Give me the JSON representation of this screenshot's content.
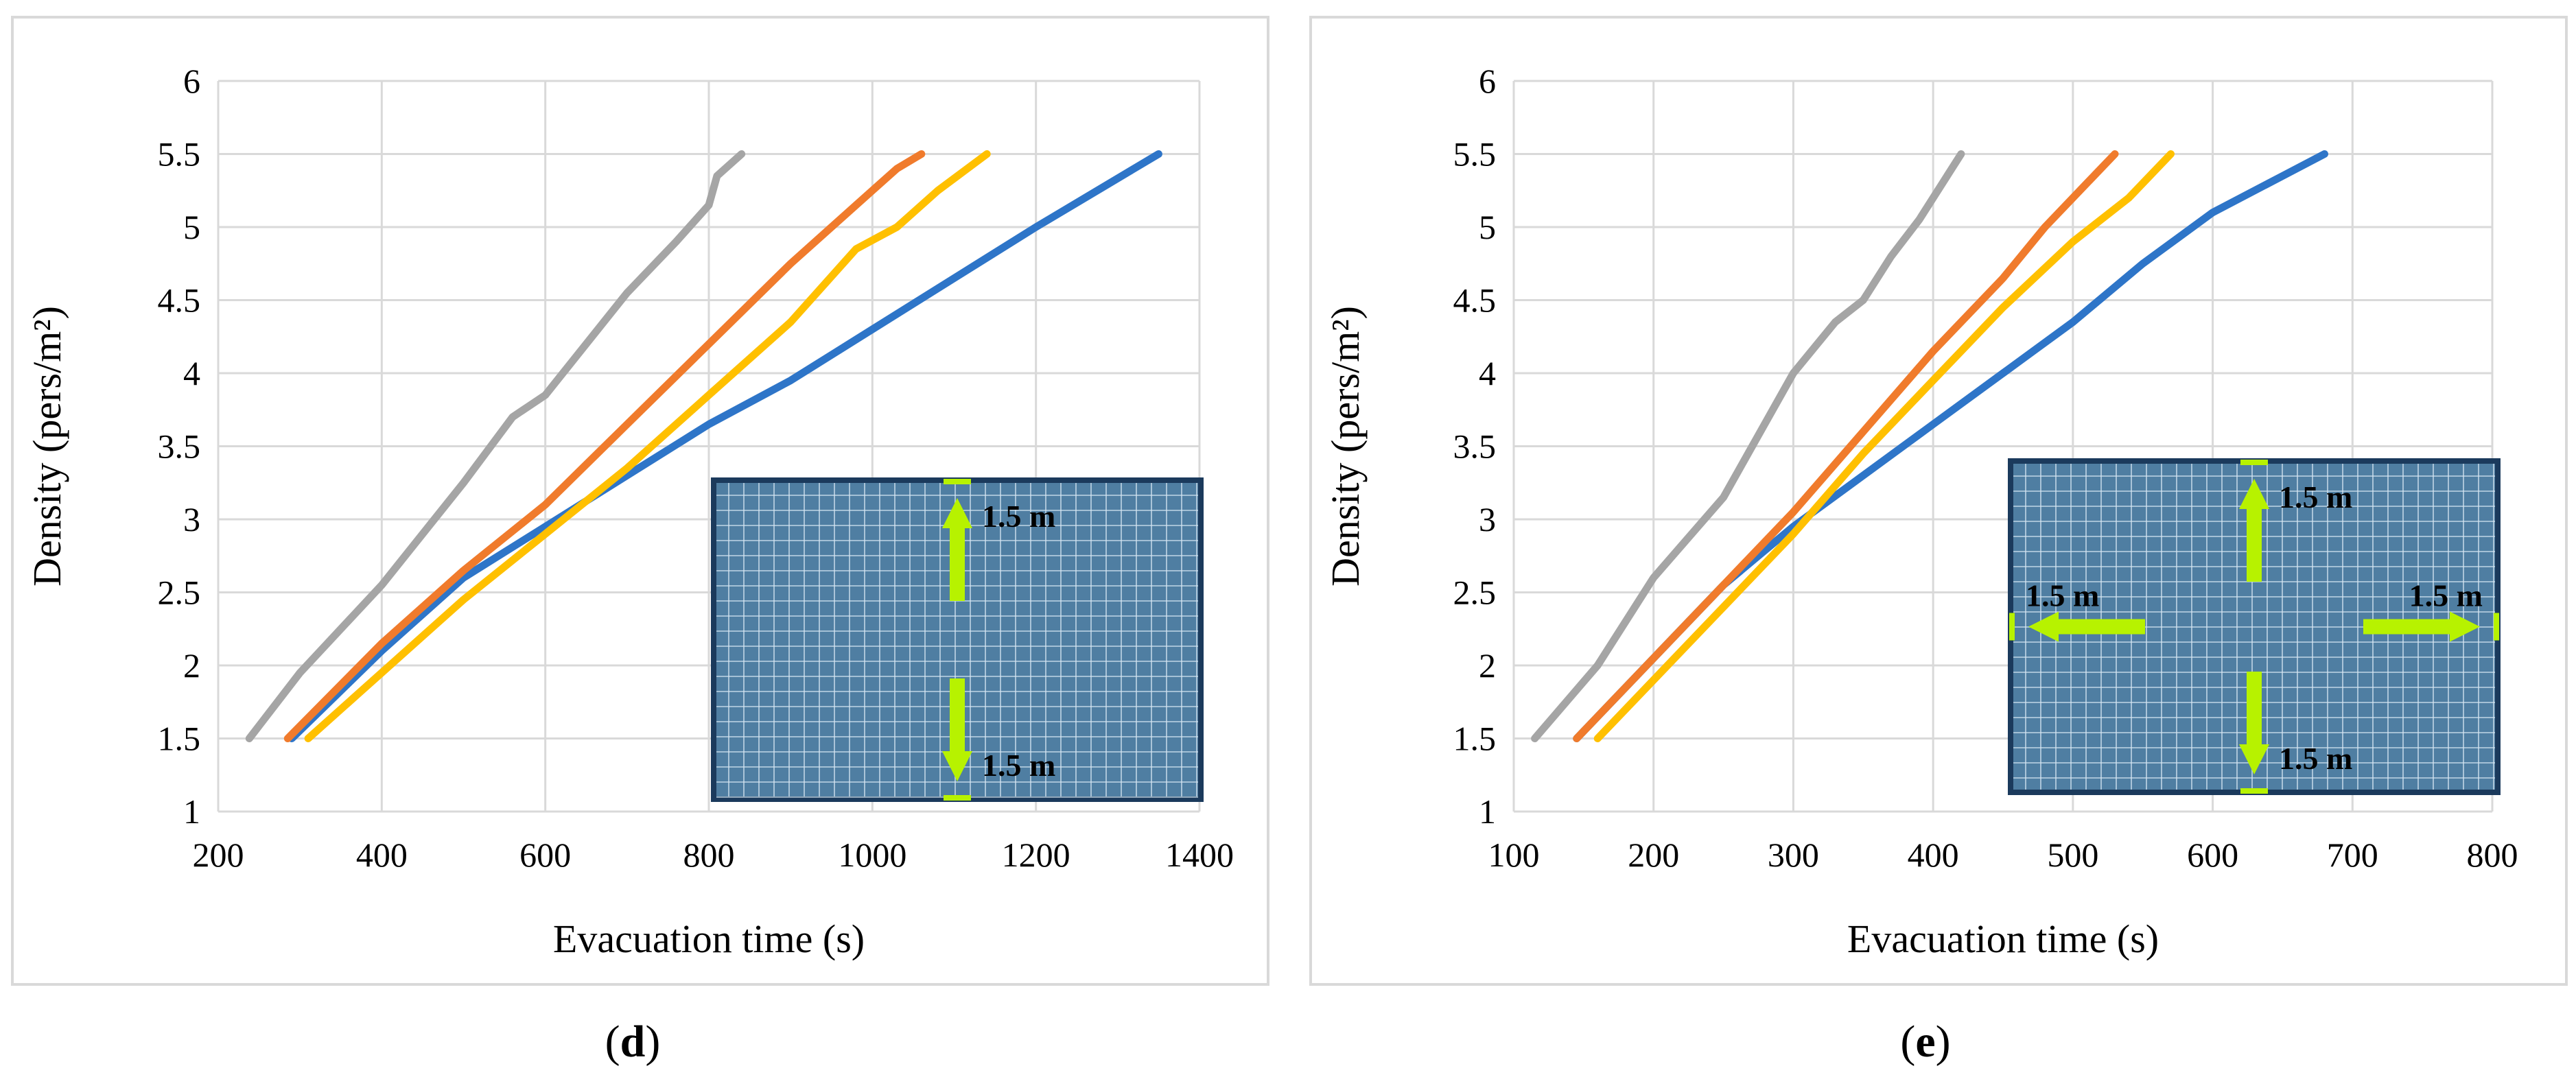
{
  "colors": {
    "series_1": "#2E75C8",
    "series_2": "#F07B2C",
    "series_3": "#FFC000",
    "series_4": "#A5A5A5",
    "grid": "#D9D9D9",
    "frame": "#D9D9D9",
    "inset_fill": "#4F7EA2",
    "inset_border": "#1B3A5C",
    "arrow": "#B7F200"
  },
  "chart_data": [
    {
      "type": "line",
      "panel_label": "d",
      "xlabel": "Evacuation time (s)",
      "ylabel": "Density (pers/m²)",
      "xlim": [
        200,
        1400
      ],
      "ylim": [
        1,
        6
      ],
      "xticks": [
        "200",
        "400",
        "600",
        "800",
        "1000",
        "1200",
        "1400"
      ],
      "yticks": [
        "1",
        "1.5",
        "2",
        "2.5",
        "3",
        "3.5",
        "4",
        "4.5",
        "5",
        "5.5",
        "6"
      ],
      "grid": true,
      "series": [
        {
          "name": "blue",
          "color": "series_1",
          "x": [
            290,
            400,
            500,
            600,
            700,
            800,
            900,
            1000,
            1100,
            1200,
            1290,
            1350
          ],
          "y": [
            1.5,
            2.1,
            2.6,
            2.95,
            3.3,
            3.65,
            3.95,
            4.3,
            4.65,
            5.0,
            5.3,
            5.5
          ]
        },
        {
          "name": "orange",
          "color": "series_2",
          "x": [
            285,
            400,
            500,
            600,
            700,
            800,
            900,
            980,
            1030,
            1060
          ],
          "y": [
            1.5,
            2.15,
            2.65,
            3.1,
            3.65,
            4.2,
            4.75,
            5.15,
            5.4,
            5.5
          ]
        },
        {
          "name": "yellow",
          "color": "series_3",
          "x": [
            310,
            400,
            500,
            600,
            700,
            800,
            900,
            980,
            1030,
            1080,
            1140
          ],
          "y": [
            1.5,
            1.95,
            2.45,
            2.9,
            3.35,
            3.85,
            4.35,
            4.85,
            5.0,
            5.25,
            5.5
          ]
        },
        {
          "name": "gray",
          "color": "series_4",
          "x": [
            238,
            300,
            400,
            500,
            560,
            600,
            700,
            760,
            800,
            810,
            840
          ],
          "y": [
            1.5,
            1.95,
            2.55,
            3.25,
            3.7,
            3.85,
            4.55,
            4.9,
            5.15,
            5.35,
            5.5
          ]
        }
      ],
      "inset": {
        "exits": [
          "top",
          "bottom"
        ],
        "labels": {
          "top": "1.5 m",
          "bottom": "1.5 m"
        }
      }
    },
    {
      "type": "line",
      "panel_label": "e",
      "xlabel": "Evacuation time (s)",
      "ylabel": "Density (pers/m²)",
      "xlim": [
        100,
        800
      ],
      "ylim": [
        1,
        6
      ],
      "xticks": [
        "100",
        "200",
        "300",
        "400",
        "500",
        "600",
        "700",
        "800"
      ],
      "yticks": [
        "1",
        "1.5",
        "2",
        "2.5",
        "3",
        "3.5",
        "4",
        "4.5",
        "5",
        "5.5",
        "6"
      ],
      "grid": true,
      "series": [
        {
          "name": "blue",
          "color": "series_1",
          "x": [
            145,
            200,
            250,
            300,
            350,
            400,
            450,
            500,
            550,
            600,
            650,
            680
          ],
          "y": [
            1.5,
            2.05,
            2.55,
            2.95,
            3.3,
            3.65,
            4.0,
            4.35,
            4.75,
            5.1,
            5.35,
            5.5
          ]
        },
        {
          "name": "orange",
          "color": "series_2",
          "x": [
            145,
            200,
            250,
            300,
            350,
            400,
            450,
            480,
            510,
            530
          ],
          "y": [
            1.5,
            2.05,
            2.55,
            3.05,
            3.6,
            4.15,
            4.65,
            5.0,
            5.3,
            5.5
          ]
        },
        {
          "name": "yellow",
          "color": "series_3",
          "x": [
            160,
            200,
            250,
            300,
            350,
            400,
            450,
            500,
            540,
            570
          ],
          "y": [
            1.5,
            1.9,
            2.4,
            2.9,
            3.45,
            3.95,
            4.45,
            4.9,
            5.2,
            5.5
          ]
        },
        {
          "name": "gray",
          "color": "series_4",
          "x": [
            115,
            160,
            200,
            250,
            300,
            330,
            350,
            370,
            390,
            410,
            420
          ],
          "y": [
            1.5,
            2.0,
            2.6,
            3.15,
            4.0,
            4.35,
            4.5,
            4.8,
            5.05,
            5.35,
            5.5
          ]
        }
      ],
      "inset": {
        "exits": [
          "top",
          "bottom",
          "left",
          "right"
        ],
        "labels": {
          "top": "1.5 m",
          "bottom": "1.5 m",
          "left": "1.5 m",
          "right": "1.5 m"
        }
      }
    }
  ]
}
